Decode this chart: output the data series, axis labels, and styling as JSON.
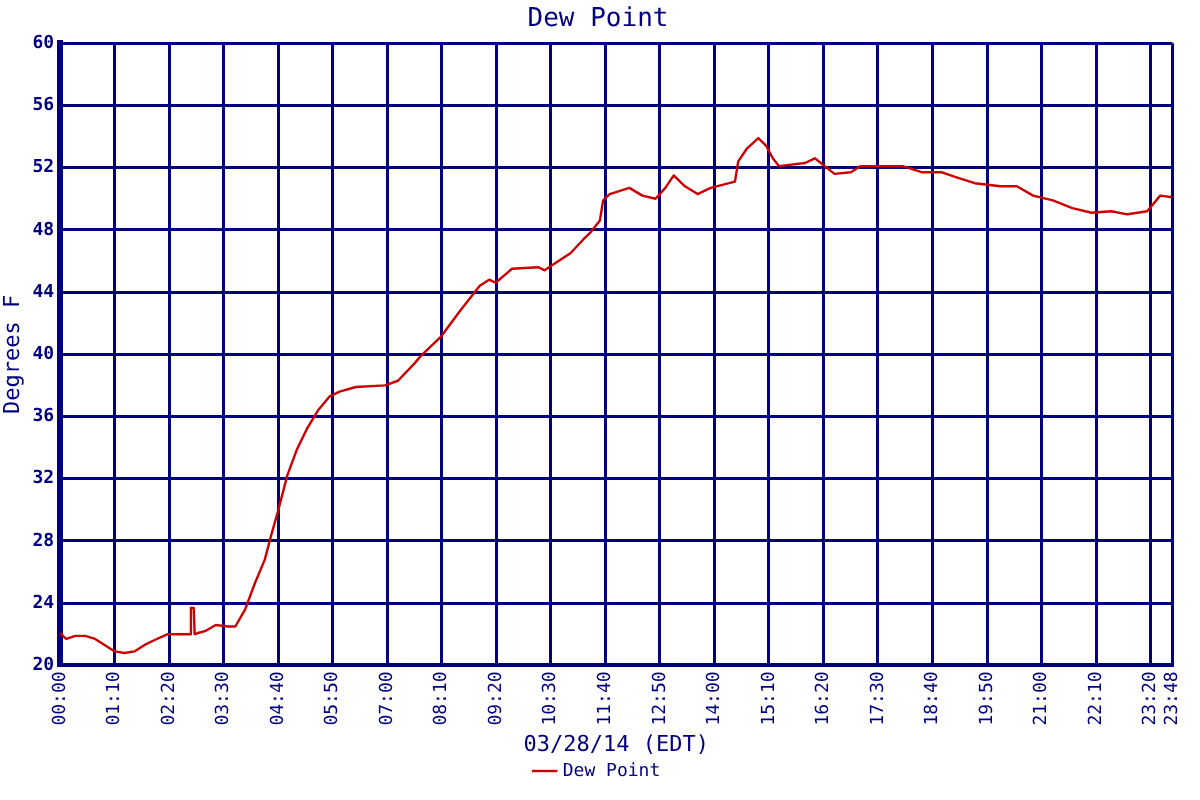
{
  "chart_data": {
    "type": "line",
    "title": "Dew Point",
    "xlabel": "03/28/14 (EDT)",
    "ylabel": "Degrees F",
    "x": [
      0,
      0.13,
      0.33,
      0.54,
      0.75,
      0.96,
      1.17,
      1.38,
      1.59,
      1.8,
      2.0,
      2.29,
      2.63,
      2.78,
      2.8,
      2.86,
      2.88,
      2.97,
      3.1,
      3.33,
      3.6,
      3.75,
      3.96,
      4.17,
      4.38,
      4.52,
      4.68,
      4.86,
      5.07,
      5.28,
      5.52,
      5.77,
      5.98,
      6.33,
      6.95,
      7.23,
      7.58,
      7.72,
      8.14,
      8.56,
      8.98,
      9.18,
      9.32,
      9.67,
      10.23,
      10.37,
      10.51,
      10.92,
      11.2,
      11.34,
      11.55,
      11.62,
      11.76,
      12.18,
      12.46,
      12.74,
      12.95,
      13.13,
      13.37,
      13.64,
      13.92,
      14.44,
      14.51,
      14.69,
      14.94,
      15.11,
      15.25,
      15.38,
      15.94,
      16.15,
      16.57,
      16.92,
      17.13,
      17.61,
      18.03,
      18.45,
      18.87,
      19.15,
      19.57,
      20.12,
      20.47,
      20.82,
      21.24,
      21.66,
      22.07,
      22.49,
      22.84,
      23.26,
      23.54,
      23.8
    ],
    "series": [
      {
        "name": "Dew Point",
        "color": "#cc0000",
        "values": [
          22.1,
          21.7,
          21.9,
          21.9,
          21.7,
          21.3,
          20.9,
          20.8,
          20.9,
          21.3,
          21.6,
          22.0,
          22.0,
          22.0,
          23.7,
          23.7,
          22.0,
          22.1,
          22.2,
          22.6,
          22.5,
          22.5,
          23.6,
          25.3,
          26.8,
          28.4,
          30.1,
          32.2,
          33.9,
          35.2,
          36.4,
          37.3,
          37.6,
          37.9,
          38.0,
          38.3,
          39.4,
          39.9,
          41.1,
          42.8,
          44.4,
          44.8,
          44.6,
          45.5,
          45.6,
          45.4,
          45.7,
          46.5,
          47.4,
          47.8,
          48.6,
          49.9,
          50.3,
          50.7,
          50.2,
          50.0,
          50.7,
          51.5,
          50.8,
          50.3,
          50.7,
          51.1,
          52.4,
          53.2,
          53.9,
          53.4,
          52.6,
          52.1,
          52.3,
          52.6,
          51.6,
          51.7,
          52.1,
          52.1,
          52.1,
          51.7,
          51.7,
          51.4,
          51.0,
          50.8,
          50.8,
          50.2,
          49.9,
          49.4,
          49.1,
          49.2,
          49.0,
          49.2,
          50.2,
          50.1
        ]
      }
    ],
    "xlim": [
      0,
      23.8
    ],
    "xticks": [
      {
        "value": 0,
        "label": "00:00"
      },
      {
        "value": 1.1667,
        "label": "01:10"
      },
      {
        "value": 2.3333,
        "label": "02:20"
      },
      {
        "value": 3.5,
        "label": "03:30"
      },
      {
        "value": 4.6667,
        "label": "04:40"
      },
      {
        "value": 5.8333,
        "label": "05:50"
      },
      {
        "value": 7,
        "label": "07:00"
      },
      {
        "value": 8.1667,
        "label": "08:10"
      },
      {
        "value": 9.3333,
        "label": "09:20"
      },
      {
        "value": 10.5,
        "label": "10:30"
      },
      {
        "value": 11.6667,
        "label": "11:40"
      },
      {
        "value": 12.8333,
        "label": "12:50"
      },
      {
        "value": 14,
        "label": "14:00"
      },
      {
        "value": 15.1667,
        "label": "15:10"
      },
      {
        "value": 16.3333,
        "label": "16:20"
      },
      {
        "value": 17.5,
        "label": "17:30"
      },
      {
        "value": 18.6667,
        "label": "18:40"
      },
      {
        "value": 19.8333,
        "label": "19:50"
      },
      {
        "value": 21,
        "label": "21:00"
      },
      {
        "value": 22.1667,
        "label": "22:10"
      },
      {
        "value": 23.3333,
        "label": "23:20"
      },
      {
        "value": 23.8,
        "label": "23:48"
      }
    ],
    "ylim": [
      20,
      60
    ],
    "yticks": [
      20,
      24,
      28,
      32,
      36,
      40,
      44,
      48,
      52,
      56,
      60
    ],
    "grid": true,
    "legend": "bottom",
    "marker": "none",
    "line_style": "solid"
  }
}
